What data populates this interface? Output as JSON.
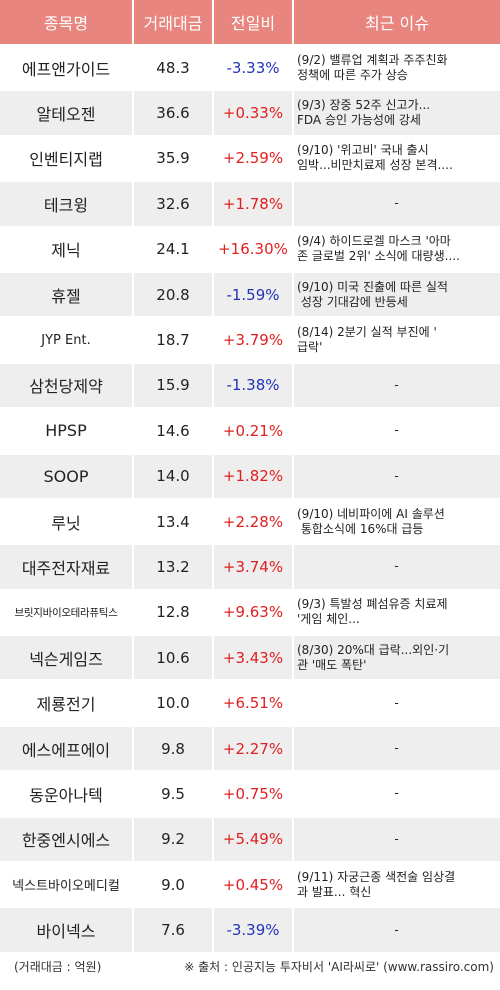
{
  "headers": {
    "name": "종목명",
    "volume": "거래대금",
    "change": "전일비",
    "issue": "최근 이슈"
  },
  "rows": [
    {
      "name": "에프앤가이드",
      "volume": "48.3",
      "change": "-3.33%",
      "dir": "down",
      "issue": "(9/2) 밸류업 계획과 주주친화\n정책에 따른 주가 상승"
    },
    {
      "name": "알테오젠",
      "volume": "36.6",
      "change": "+0.33%",
      "dir": "up",
      "issue": "(9/3) 장중 52주 신고가...\nFDA 승인 가능성에 강세"
    },
    {
      "name": "인벤티지랩",
      "volume": "35.9",
      "change": "+2.59%",
      "dir": "up",
      "issue": "(9/10) '위고비' 국내 출시\n임박...비만치료제 성장 본격...."
    },
    {
      "name": "테크윙",
      "volume": "32.6",
      "change": "+1.78%",
      "dir": "up",
      "issue": "-"
    },
    {
      "name": "제닉",
      "volume": "24.1",
      "change": "+16.30%",
      "dir": "up",
      "issue": "(9/4) 하이드로겔 마스크 '아마\n존 글로벌 2위' 소식에 대량생...."
    },
    {
      "name": "휴젤",
      "volume": "20.8",
      "change": "-1.59%",
      "dir": "down",
      "issue": "(9/10) 미국 진출에 따른 실적\n 성장 기대감에 반등세"
    },
    {
      "name": "JYP Ent.",
      "volume": "18.7",
      "change": "+3.79%",
      "dir": "up",
      "issue": "(8/14) 2분기 실적 부진에 '\n급락'"
    },
    {
      "name": "삼천당제약",
      "volume": "15.9",
      "change": "-1.38%",
      "dir": "down",
      "issue": "-"
    },
    {
      "name": "HPSP",
      "volume": "14.6",
      "change": "+0.21%",
      "dir": "up",
      "issue": "-"
    },
    {
      "name": "SOOP",
      "volume": "14.0",
      "change": "+1.82%",
      "dir": "up",
      "issue": "-"
    },
    {
      "name": "루닛",
      "volume": "13.4",
      "change": "+2.28%",
      "dir": "up",
      "issue": "(9/10) 네비파이에 AI 솔루션\n 통합소식에 16%대 급등"
    },
    {
      "name": "대주전자재료",
      "volume": "13.2",
      "change": "+3.74%",
      "dir": "up",
      "issue": "-"
    },
    {
      "name": "브릿지바이오테라퓨틱스",
      "volume": "12.8",
      "change": "+9.63%",
      "dir": "up",
      "issue": "(9/3) 특발성 폐섬유증 치료제\n'게임 체인..."
    },
    {
      "name": "넥슨게임즈",
      "volume": "10.6",
      "change": "+3.43%",
      "dir": "up",
      "issue": "(8/30) 20%대 급락...외인·기\n관 '매도 폭탄'"
    },
    {
      "name": "제룡전기",
      "volume": "10.0",
      "change": "+6.51%",
      "dir": "up",
      "issue": "-"
    },
    {
      "name": "에스에프에이",
      "volume": "9.8",
      "change": "+2.27%",
      "dir": "up",
      "issue": "-"
    },
    {
      "name": "동운아나텍",
      "volume": "9.5",
      "change": "+0.75%",
      "dir": "up",
      "issue": "-"
    },
    {
      "name": "한중엔시에스",
      "volume": "9.2",
      "change": "+5.49%",
      "dir": "up",
      "issue": "-"
    },
    {
      "name": "넥스트바이오메디컬",
      "volume": "9.0",
      "change": "+0.45%",
      "dir": "up",
      "issue": "(9/11) 자궁근종 색전술 임상결\n과 발표... 혁신"
    },
    {
      "name": "바이넥스",
      "volume": "7.6",
      "change": "-3.39%",
      "dir": "down",
      "issue": "-"
    }
  ],
  "footer": {
    "unit": "(거래대금 : 억원)",
    "source": "※ 출처 : 인공지능 투자비서 'AI라씨로' (www.rassiro.com)"
  },
  "colors": {
    "header_bg": "#e8857f",
    "header_text": "#ffffff",
    "row_alt_bg": "#eeeeee",
    "up": "#e02020",
    "down": "#2233bb"
  }
}
